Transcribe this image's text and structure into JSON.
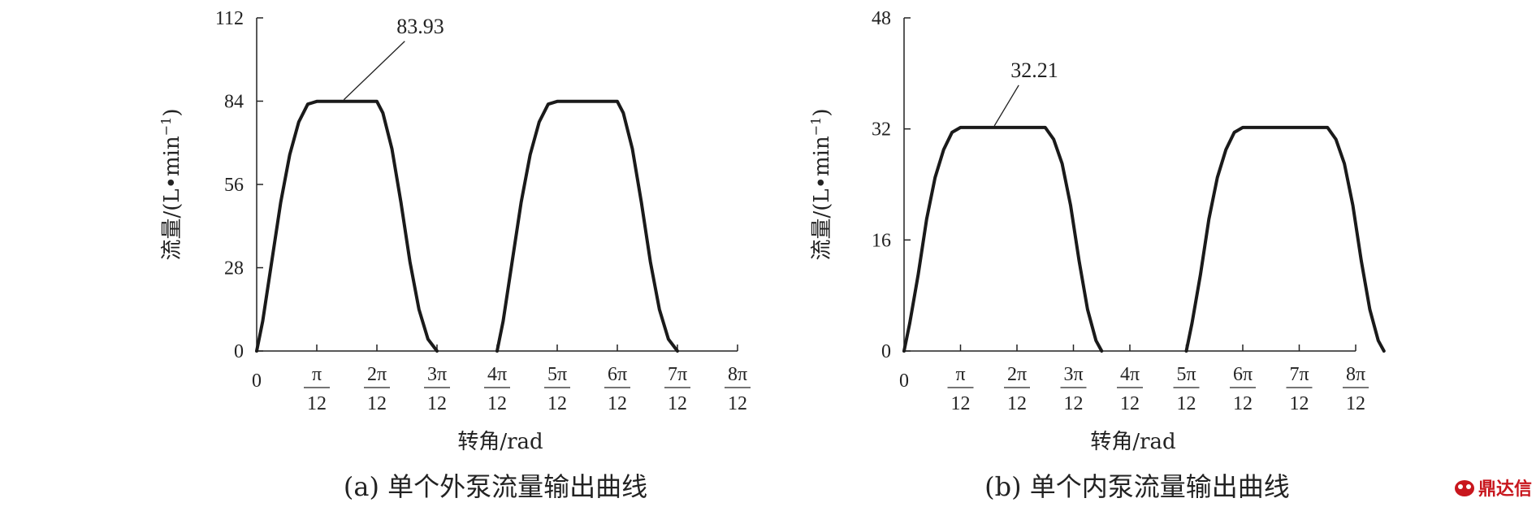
{
  "chart_data": [
    {
      "type": "line",
      "caption": "(a) 单个外泵流量输出曲线",
      "xlabel": "转角/rad",
      "ylabel": "流量/(L•min",
      "ylabel_sup": "−1",
      "ylabel_close": ")",
      "ylim": [
        0,
        112
      ],
      "yticks": [
        "0",
        "28",
        "56",
        "84",
        "112"
      ],
      "xlim": [
        0,
        8
      ],
      "xtick_zero": "0",
      "xticks": [
        {
          "num": "π",
          "den": "12"
        },
        {
          "num": "2π",
          "den": "12"
        },
        {
          "num": "3π",
          "den": "12"
        },
        {
          "num": "4π",
          "den": "12"
        },
        {
          "num": "5π",
          "den": "12"
        },
        {
          "num": "6π",
          "den": "12"
        },
        {
          "num": "7π",
          "den": "12"
        },
        {
          "num": "8π",
          "den": "12"
        }
      ],
      "annotation": {
        "text": "83.93",
        "x": 1.45,
        "y": 83.93
      },
      "series": [
        {
          "x": [
            0,
            0.1,
            0.25,
            0.4,
            0.55,
            0.7,
            0.85,
            1.0,
            2.0,
            2.1,
            2.25,
            2.4,
            2.55,
            2.7,
            2.85,
            3.0
          ],
          "y": [
            0,
            10,
            30,
            50,
            66,
            77,
            83,
            83.93,
            83.93,
            80,
            68,
            50,
            30,
            14,
            4,
            0
          ]
        },
        {
          "x": [
            4.0,
            4.1,
            4.25,
            4.4,
            4.55,
            4.7,
            4.85,
            5.0,
            6.0,
            6.1,
            6.25,
            6.4,
            6.55,
            6.7,
            6.85,
            7.0
          ],
          "y": [
            0,
            10,
            30,
            50,
            66,
            77,
            83,
            83.93,
            83.93,
            80,
            68,
            50,
            30,
            14,
            4,
            0
          ]
        }
      ]
    },
    {
      "type": "line",
      "caption": "(b) 单个内泵流量输出曲线",
      "xlabel": "转角/rad",
      "ylabel": "流量/(L•min",
      "ylabel_sup": "−1",
      "ylabel_close": ")",
      "ylim": [
        0,
        48
      ],
      "yticks": [
        "0",
        "16",
        "32",
        "48"
      ],
      "xlim": [
        0,
        8.5
      ],
      "xtick_zero": "0",
      "xticks": [
        {
          "num": "π",
          "den": "12"
        },
        {
          "num": "2π",
          "den": "12"
        },
        {
          "num": "3π",
          "den": "12"
        },
        {
          "num": "4π",
          "den": "12"
        },
        {
          "num": "5π",
          "den": "12"
        },
        {
          "num": "6π",
          "den": "12"
        },
        {
          "num": "7π",
          "den": "12"
        },
        {
          "num": "8π",
          "den": "12"
        }
      ],
      "annotation": {
        "text": "32.21",
        "x": 1.6,
        "y": 32.21
      },
      "series": [
        {
          "x": [
            0,
            0.1,
            0.25,
            0.4,
            0.55,
            0.7,
            0.85,
            1.0,
            2.5,
            2.65,
            2.8,
            2.95,
            3.1,
            3.25,
            3.4,
            3.5
          ],
          "y": [
            0,
            4,
            11,
            19,
            25,
            29,
            31.5,
            32.21,
            32.21,
            30.5,
            27,
            21,
            13,
            6,
            1.5,
            0
          ]
        },
        {
          "x": [
            5.0,
            5.1,
            5.25,
            5.4,
            5.55,
            5.7,
            5.85,
            6.0,
            7.5,
            7.65,
            7.8,
            7.95,
            8.1,
            8.25,
            8.4,
            8.5
          ],
          "y": [
            0,
            4,
            11,
            19,
            25,
            29,
            31.5,
            32.21,
            32.21,
            30.5,
            27,
            21,
            13,
            6,
            1.5,
            0
          ]
        }
      ]
    }
  ],
  "watermark": {
    "text": "鼎达信",
    "icon": "logo-mark-icon",
    "color": "#c8161d"
  }
}
